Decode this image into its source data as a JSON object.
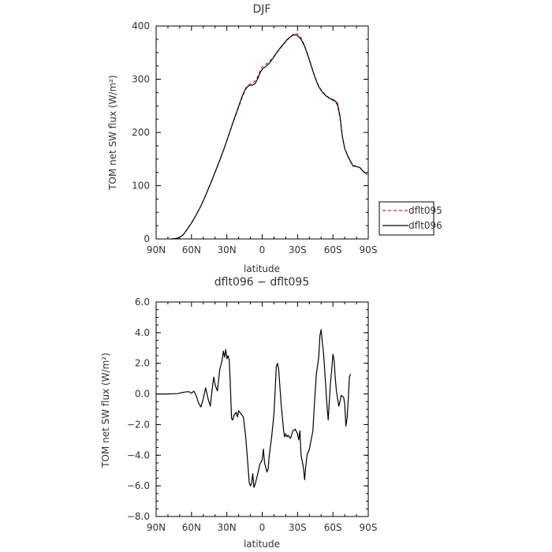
{
  "chart_data": [
    {
      "type": "line",
      "title": "DJF",
      "xlabel": "latitude",
      "ylabel": "TOM net SW flux (W/m²)",
      "xticks": [
        "90N",
        "60N",
        "30N",
        "0",
        "30S",
        "60S",
        "90S"
      ],
      "yticks": [
        "0",
        "100",
        "200",
        "300",
        "400"
      ],
      "xlim": [
        -90,
        90
      ],
      "ylim": [
        0,
        400
      ],
      "legend": "right",
      "series": [
        {
          "name": "dflt095",
          "color": "#d62728",
          "dash": true,
          "points": [
            [
              -77,
              0
            ],
            [
              -73,
              1
            ],
            [
              -70,
              3
            ],
            [
              -67,
              8
            ],
            [
              -64,
              17
            ],
            [
              -60,
              30
            ],
            [
              -56,
              45
            ],
            [
              -52,
              62
            ],
            [
              -48,
              82
            ],
            [
              -44,
              103
            ],
            [
              -40,
              125
            ],
            [
              -36,
              148
            ],
            [
              -32,
              172
            ],
            [
              -28,
              198
            ],
            [
              -24,
              223
            ],
            [
              -20,
              247
            ],
            [
              -17,
              266
            ],
            [
              -14,
              281
            ],
            [
              -12,
              288
            ],
            [
              -10,
              292
            ],
            [
              -8,
              293
            ],
            [
              -6,
              297
            ],
            [
              -4,
              304
            ],
            [
              -2,
              315
            ],
            [
              0,
              323
            ],
            [
              3,
              328
            ],
            [
              6,
              333
            ],
            [
              9,
              341
            ],
            [
              12,
              349
            ],
            [
              15,
              357
            ],
            [
              18,
              365
            ],
            [
              21,
              373
            ],
            [
              24,
              380
            ],
            [
              27,
              386
            ],
            [
              30,
              385
            ],
            [
              33,
              378
            ],
            [
              36,
              363
            ],
            [
              39,
              344
            ],
            [
              42,
              323
            ],
            [
              45,
              303
            ],
            [
              48,
              287
            ],
            [
              51,
              277
            ],
            [
              54,
              270
            ],
            [
              57,
              265
            ],
            [
              60,
              260
            ],
            [
              62,
              258
            ],
            [
              64,
              250
            ],
            [
              66,
              227
            ],
            [
              68,
              192
            ],
            [
              70,
              170
            ],
            [
              72,
              160
            ],
            [
              74,
              148
            ],
            [
              77,
              140
            ],
            [
              80,
              136
            ],
            [
              83,
              134
            ],
            [
              86,
              127
            ],
            [
              89,
              121
            ]
          ]
        },
        {
          "name": "dflt096",
          "color": "#000000",
          "dash": false,
          "points": [
            [
              -77,
              0
            ],
            [
              -73,
              1
            ],
            [
              -70,
              3
            ],
            [
              -67,
              8
            ],
            [
              -64,
              17
            ],
            [
              -60,
              30
            ],
            [
              -56,
              45
            ],
            [
              -52,
              62
            ],
            [
              -48,
              82
            ],
            [
              -44,
              103
            ],
            [
              -40,
              125
            ],
            [
              -36,
              148
            ],
            [
              -32,
              172
            ],
            [
              -28,
              198
            ],
            [
              -24,
              224
            ],
            [
              -20,
              249
            ],
            [
              -17,
              268
            ],
            [
              -14,
              283
            ],
            [
              -12,
              287
            ],
            [
              -10,
              289
            ],
            [
              -8,
              289
            ],
            [
              -6,
              292
            ],
            [
              -4,
              300
            ],
            [
              -2,
              311
            ],
            [
              0,
              319
            ],
            [
              3,
              324
            ],
            [
              6,
              330
            ],
            [
              9,
              339
            ],
            [
              12,
              349
            ],
            [
              15,
              358
            ],
            [
              18,
              366
            ],
            [
              21,
              374
            ],
            [
              24,
              380
            ],
            [
              27,
              384
            ],
            [
              30,
              382
            ],
            [
              33,
              375
            ],
            [
              36,
              362
            ],
            [
              39,
              343
            ],
            [
              42,
              322
            ],
            [
              45,
              302
            ],
            [
              48,
              286
            ],
            [
              51,
              276
            ],
            [
              54,
              269
            ],
            [
              57,
              264
            ],
            [
              60,
              262
            ],
            [
              62,
              259
            ],
            [
              64,
              254
            ],
            [
              66,
              231
            ],
            [
              68,
              193
            ],
            [
              70,
              170
            ],
            [
              72,
              159
            ],
            [
              74,
              150
            ],
            [
              77,
              137
            ],
            [
              80,
              136
            ],
            [
              83,
              134
            ],
            [
              86,
              126
            ],
            [
              89,
              121
            ]
          ]
        }
      ]
    },
    {
      "type": "line",
      "title": "dflt096 − dflt095",
      "xlabel": "latitude",
      "ylabel": "TOM net SW flux (W/m²)",
      "xticks": [
        "90N",
        "60N",
        "30N",
        "0",
        "30S",
        "60S",
        "90S"
      ],
      "yticks": [
        "−8.0",
        "−6.0",
        "−4.0",
        "−2.0",
        "0.0",
        "2.0",
        "4.0",
        "6.0"
      ],
      "xlim": [
        -90,
        90
      ],
      "ylim": [
        -8,
        6
      ],
      "series": [
        {
          "name": "",
          "color": "#000000",
          "dash": false,
          "points": [
            [
              -90,
              0
            ],
            [
              -80,
              0
            ],
            [
              -72,
              0.02
            ],
            [
              -66,
              0.12
            ],
            [
              -62,
              0.15
            ],
            [
              -60,
              0.05
            ],
            [
              -58,
              0.18
            ],
            [
              -56,
              -0.1
            ],
            [
              -54,
              -0.6
            ],
            [
              -52,
              -0.85
            ],
            [
              -50,
              -0.3
            ],
            [
              -48,
              0.4
            ],
            [
              -46,
              -0.3
            ],
            [
              -44,
              -0.8
            ],
            [
              -42,
              0.6
            ],
            [
              -41,
              1.1
            ],
            [
              -40,
              0.6
            ],
            [
              -38,
              0.2
            ],
            [
              -36,
              1.6
            ],
            [
              -34,
              2.2
            ],
            [
              -33,
              2.8
            ],
            [
              -32,
              2.4
            ],
            [
              -31,
              2.9
            ],
            [
              -30,
              2.3
            ],
            [
              -29,
              2.5
            ],
            [
              -28,
              2.2
            ],
            [
              -27,
              0.6
            ],
            [
              -26,
              -1.6
            ],
            [
              -25,
              -1.7
            ],
            [
              -24,
              -1.4
            ],
            [
              -22,
              -1.2
            ],
            [
              -21,
              -1.5
            ],
            [
              -20,
              -1.1
            ],
            [
              -18,
              -1.3
            ],
            [
              -16,
              -1.5
            ],
            [
              -14,
              -2.8
            ],
            [
              -12,
              -4.8
            ],
            [
              -11,
              -5.8
            ],
            [
              -10,
              -6.0
            ],
            [
              -9,
              -5.8
            ],
            [
              -8,
              -5.2
            ],
            [
              -7,
              -6.1
            ],
            [
              -6,
              -5.9
            ],
            [
              -4,
              -5.3
            ],
            [
              -2,
              -4.6
            ],
            [
              0,
              -4.3
            ],
            [
              1,
              -3.6
            ],
            [
              2,
              -4.5
            ],
            [
              3,
              -4.8
            ],
            [
              4,
              -5.1
            ],
            [
              5,
              -4.9
            ],
            [
              6,
              -4.0
            ],
            [
              8,
              -2.8
            ],
            [
              10,
              -1.3
            ],
            [
              11,
              0.2
            ],
            [
              12,
              1.8
            ],
            [
              13,
              2.0
            ],
            [
              14,
              1.6
            ],
            [
              15,
              0.5
            ],
            [
              16,
              -0.6
            ],
            [
              17,
              -1.4
            ],
            [
              18,
              -2.3
            ],
            [
              19,
              -2.8
            ],
            [
              20,
              -2.6
            ],
            [
              21,
              -2.8
            ],
            [
              22,
              -2.7
            ],
            [
              24,
              -2.9
            ],
            [
              26,
              -2.4
            ],
            [
              28,
              -2.3
            ],
            [
              30,
              -2.6
            ],
            [
              31,
              -3.0
            ],
            [
              32,
              -2.4
            ],
            [
              33,
              -4.0
            ],
            [
              35,
              -4.8
            ],
            [
              36,
              -5.6
            ],
            [
              37,
              -4.7
            ],
            [
              38,
              -4.0
            ],
            [
              40,
              -3.6
            ],
            [
              42,
              -2.8
            ],
            [
              43,
              -2.4
            ],
            [
              44,
              -1.0
            ],
            [
              45,
              0.2
            ],
            [
              46,
              1.3
            ],
            [
              48,
              2.4
            ],
            [
              49,
              3.8
            ],
            [
              50,
              4.2
            ],
            [
              51,
              3.4
            ],
            [
              52,
              2.7
            ],
            [
              53,
              1.6
            ],
            [
              54,
              0.4
            ],
            [
              55,
              -0.8
            ],
            [
              56,
              -1.7
            ],
            [
              57,
              -0.4
            ],
            [
              58,
              0.8
            ],
            [
              59,
              1.6
            ],
            [
              60,
              2.6
            ],
            [
              61,
              2.2
            ],
            [
              62,
              1.0
            ],
            [
              63,
              0.2
            ],
            [
              64,
              -0.3
            ],
            [
              65,
              -0.8
            ],
            [
              66,
              -0.5
            ],
            [
              67,
              -0.1
            ],
            [
              69,
              -0.2
            ],
            [
              70,
              -0.6
            ],
            [
              71,
              -2.1
            ],
            [
              72,
              -1.6
            ],
            [
              73,
              -0.4
            ],
            [
              74,
              1.1
            ],
            [
              75,
              1.3
            ]
          ]
        }
      ]
    }
  ]
}
